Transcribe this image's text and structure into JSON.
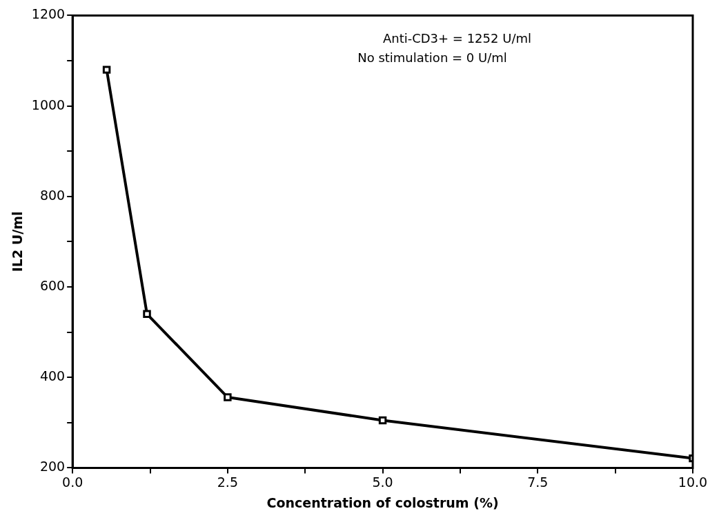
{
  "chart_data": {
    "type": "line",
    "xlabel": "Concentration of colostrum (%)",
    "ylabel": "IL2 U/ml",
    "x": [
      0.55,
      1.2,
      2.5,
      5.0,
      10.0
    ],
    "series": [
      {
        "color": "#000000",
        "values": [
          1080,
          540,
          356,
          305,
          221
        ]
      }
    ],
    "xlim": [
      0,
      10
    ],
    "xticks": [
      {
        "value": 0,
        "label": "0.0"
      },
      {
        "value": 1.25,
        "label": null
      },
      2.5,
      {
        "value": 3.75,
        "label": null
      },
      {
        "value": 5,
        "label": "5.0"
      },
      {
        "value": 6.25,
        "label": null
      },
      7.5,
      {
        "value": 8.75,
        "label": null
      },
      {
        "value": 10,
        "label": "10.0"
      }
    ],
    "ylim": [
      200,
      1200
    ],
    "yticks": [
      200,
      {
        "value": 300,
        "label": null
      },
      400,
      {
        "value": 500,
        "label": null
      },
      600,
      {
        "value": 700,
        "label": null
      },
      800,
      {
        "value": 900,
        "label": null
      },
      1000,
      {
        "value": 1100,
        "label": null
      },
      1200
    ],
    "annotations": [
      "Anti-CD3+ = 1252 U/ml",
      "No stimulation = 0 U/ml"
    ],
    "marker": "square",
    "line_style": "solid",
    "grid": false,
    "legend": false
  }
}
